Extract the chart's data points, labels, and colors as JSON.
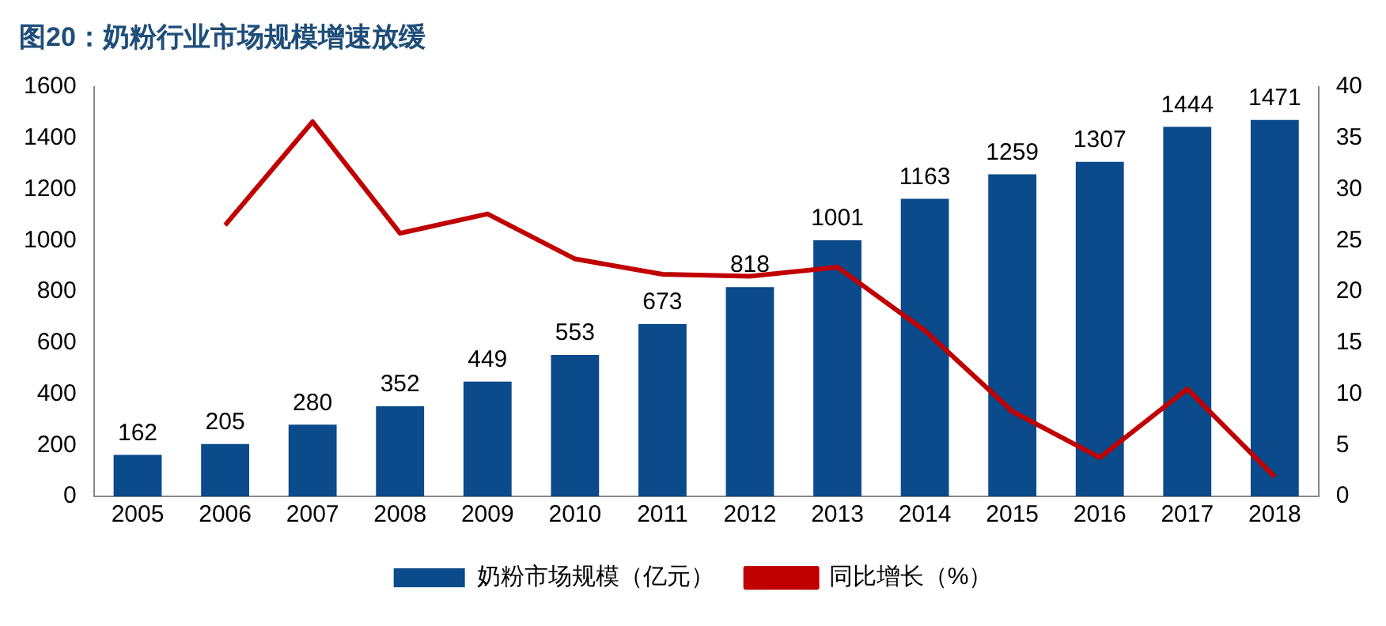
{
  "chart_data": {
    "type": "bar",
    "title": "图20：奶粉行业市场规模增速放缓",
    "categories": [
      "2005",
      "2006",
      "2007",
      "2008",
      "2009",
      "2010",
      "2011",
      "2012",
      "2013",
      "2014",
      "2015",
      "2016",
      "2017",
      "2018"
    ],
    "series": [
      {
        "name": "奶粉市场规模（亿元）",
        "color": "#0b4a8b",
        "values": [
          162,
          205,
          280,
          352,
          449,
          553,
          673,
          818,
          1001,
          1163,
          1259,
          1307,
          1444,
          1471
        ],
        "value_labels": [
          "162",
          "205",
          "280",
          "352",
          "449",
          "553",
          "673",
          "818",
          "1001",
          "1163",
          "1259",
          "1307",
          "1444",
          "1471"
        ]
      },
      {
        "name": "同比增长（%）",
        "type": "line",
        "axis": "y2",
        "color": "#c00000",
        "values": [
          null,
          26.5,
          36.6,
          25.7,
          27.6,
          23.2,
          21.7,
          21.5,
          22.4,
          16.2,
          8.3,
          3.8,
          10.5,
          1.9
        ]
      }
    ],
    "ylim": [
      0,
      1600
    ],
    "yticks": [
      0,
      200,
      400,
      600,
      800,
      1000,
      1200,
      1400,
      1600
    ],
    "y2lim": [
      0,
      40
    ],
    "y2ticks": [
      0,
      5,
      10,
      15,
      20,
      25,
      30,
      35,
      40
    ],
    "grid": false,
    "legend": "bottom",
    "marker": "none"
  }
}
